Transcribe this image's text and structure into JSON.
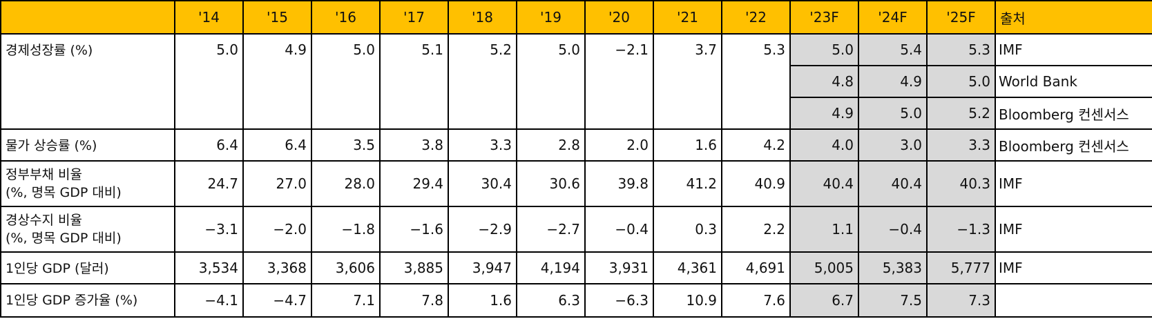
{
  "table": {
    "header": [
      "'14",
      "'15",
      "'16",
      "'17",
      "'18",
      "'19",
      "'20",
      "'21",
      "'22",
      "'23F",
      "'24F",
      "'25F",
      "출처"
    ],
    "rows": [
      {
        "label": [
          "경제성장률 (%)"
        ],
        "actual": [
          "5.0",
          "4.9",
          "5.0",
          "5.1",
          "5.2",
          "5.0",
          "−2.1",
          "3.7",
          "5.3"
        ],
        "forecasts": [
          {
            "values": [
              "5.0",
              "5.4",
              "5.3"
            ],
            "source": "IMF"
          },
          {
            "values": [
              "4.8",
              "4.9",
              "5.0"
            ],
            "source": "World Bank"
          },
          {
            "values": [
              "4.9",
              "5.0",
              "5.2"
            ],
            "source": "Bloomberg 컨센서스"
          }
        ]
      },
      {
        "label": [
          "물가 상승률 (%)"
        ],
        "actual": [
          "6.4",
          "6.4",
          "3.5",
          "3.8",
          "3.3",
          "2.8",
          "2.0",
          "1.6",
          "4.2"
        ],
        "forecasts": [
          {
            "values": [
              "4.0",
              "3.0",
              "3.3"
            ],
            "source": "Bloomberg 컨센서스"
          }
        ]
      },
      {
        "label": [
          "정부부채 비율",
          "(%, 명목 GDP 대비)"
        ],
        "actual": [
          "24.7",
          "27.0",
          "28.0",
          "29.4",
          "30.4",
          "30.6",
          "39.8",
          "41.2",
          "40.9"
        ],
        "forecasts": [
          {
            "values": [
              "40.4",
              "40.4",
              "40.3"
            ],
            "source": "IMF"
          }
        ]
      },
      {
        "label": [
          "경상수지 비율",
          "(%, 명목 GDP 대비)"
        ],
        "actual": [
          "−3.1",
          "−2.0",
          "−1.8",
          "−1.6",
          "−2.9",
          "−2.7",
          "−0.4",
          "0.3",
          "2.2"
        ],
        "forecasts": [
          {
            "values": [
              "1.1",
              "−0.4",
              "−1.3"
            ],
            "source": "IMF"
          }
        ]
      },
      {
        "label": [
          "1인당 GDP (달러)"
        ],
        "actual": [
          "3,534",
          "3,368",
          "3,606",
          "3,885",
          "3,947",
          "4,194",
          "3,931",
          "4,361",
          "4,691"
        ],
        "forecasts": [
          {
            "values": [
              "5,005",
              "5,383",
              "5,777"
            ],
            "source": "IMF"
          }
        ]
      },
      {
        "label": [
          "1인당 GDP 증가율 (%)"
        ],
        "actual": [
          "−4.1",
          "−4.7",
          "7.1",
          "7.8",
          "1.6",
          "6.3",
          "−6.3",
          "10.9",
          "7.6"
        ],
        "forecasts": [
          {
            "values": [
              "6.7",
              "7.5",
              "7.3"
            ]
          }
        ]
      }
    ]
  }
}
